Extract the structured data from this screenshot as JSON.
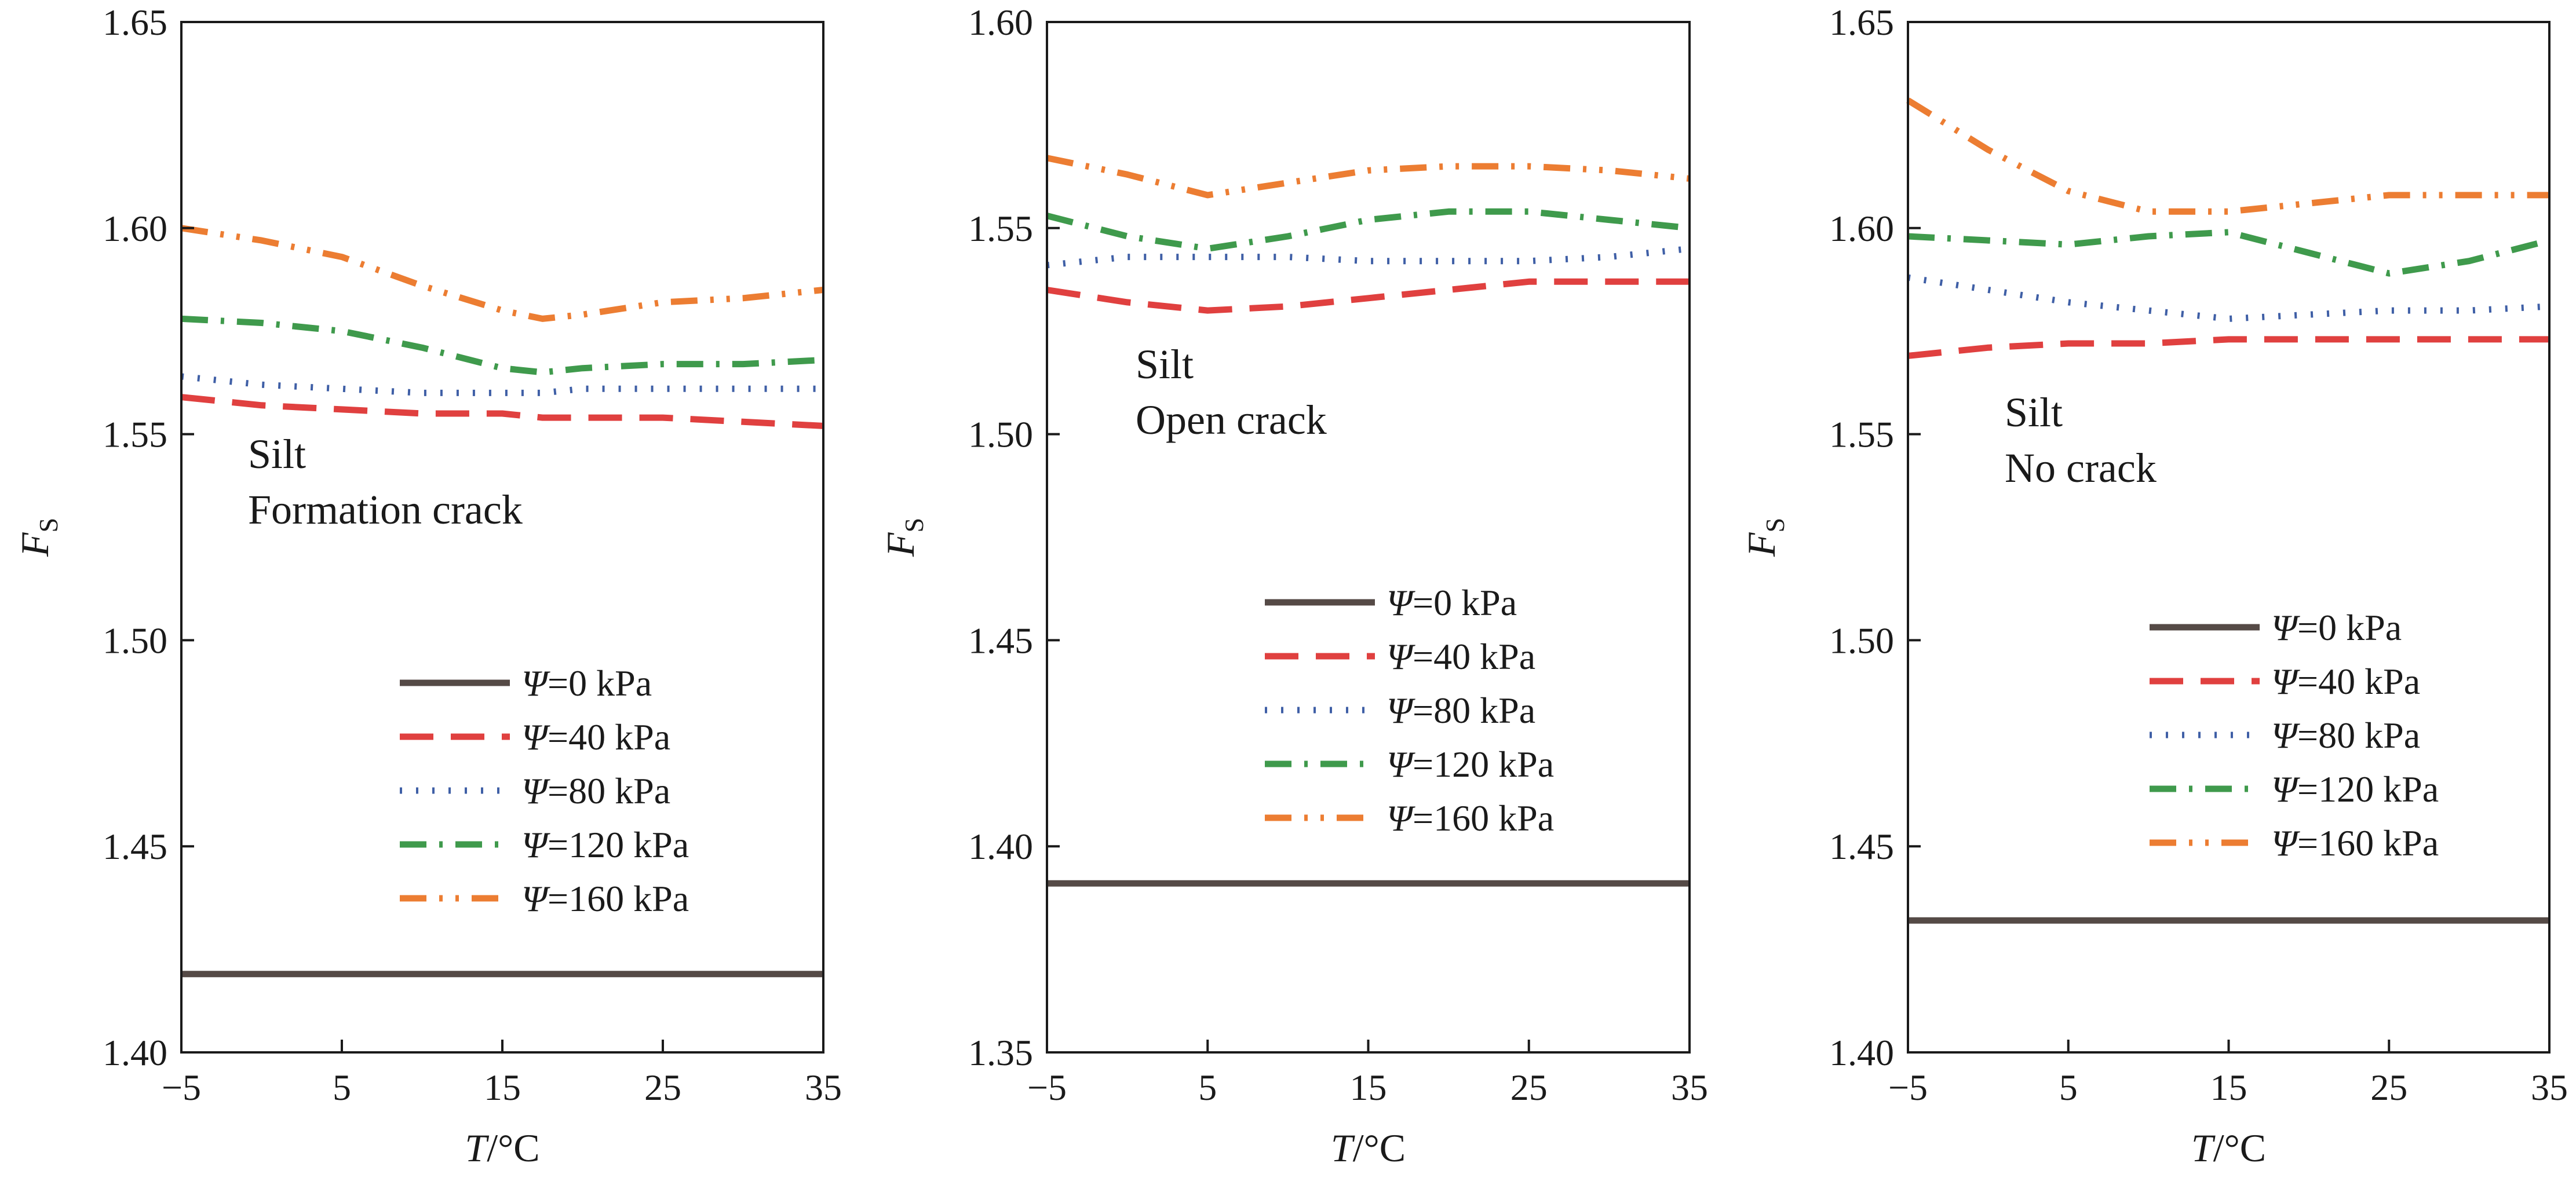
{
  "chart_data": [
    {
      "type": "line",
      "title": "",
      "xlabel": {
        "var": "T",
        "unit": "/°C"
      },
      "ylabel": {
        "var": "F",
        "sub": "S"
      },
      "xlim": [
        -5,
        35
      ],
      "ylim": [
        1.4,
        1.65
      ],
      "xticks": [
        -5,
        5,
        15,
        25,
        35
      ],
      "xtick_labels": [
        "−5",
        "5",
        "15",
        "25",
        "35"
      ],
      "yticks": [
        1.4,
        1.45,
        1.5,
        1.55,
        1.6,
        1.65
      ],
      "ytick_labels": [
        "1.40",
        "1.45",
        "1.50",
        "1.55",
        "1.60",
        "1.65"
      ],
      "annotation": [
        "Silt",
        "Formation crack"
      ],
      "legend_position": "lower-right",
      "x": [
        -5,
        0,
        5,
        10,
        15,
        17.5,
        20,
        25,
        30,
        35
      ],
      "series": [
        {
          "name": "Ψ=0 kPa",
          "legend": {
            "sym": "Ψ",
            "text": "=0 kPa"
          },
          "style": "solid",
          "color": "#554a46",
          "values": [
            1.419,
            1.419,
            1.419,
            1.419,
            1.419,
            1.419,
            1.419,
            1.419,
            1.419,
            1.419
          ]
        },
        {
          "name": "Ψ=40 kPa",
          "legend": {
            "sym": "Ψ",
            "text": "=40 kPa"
          },
          "style": "dashed",
          "color": "#e0403f",
          "values": [
            1.559,
            1.557,
            1.556,
            1.555,
            1.555,
            1.554,
            1.554,
            1.554,
            1.553,
            1.552
          ]
        },
        {
          "name": "Ψ=80 kPa",
          "legend": {
            "sym": "Ψ",
            "text": "=80 kPa"
          },
          "style": "dotted",
          "color": "#3f5fa6",
          "values": [
            1.564,
            1.562,
            1.561,
            1.56,
            1.56,
            1.56,
            1.561,
            1.561,
            1.561,
            1.561
          ]
        },
        {
          "name": "Ψ=120 kPa",
          "legend": {
            "sym": "Ψ",
            "text": "=120 kPa"
          },
          "style": "dashdot",
          "color": "#3f9a4c",
          "values": [
            1.578,
            1.577,
            1.575,
            1.571,
            1.566,
            1.565,
            1.566,
            1.567,
            1.567,
            1.568
          ]
        },
        {
          "name": "Ψ=160 kPa",
          "legend": {
            "sym": "Ψ",
            "text": "=160 kPa"
          },
          "style": "dashdotdot",
          "color": "#ec7d32",
          "values": [
            1.6,
            1.597,
            1.593,
            1.586,
            1.58,
            1.578,
            1.579,
            1.582,
            1.583,
            1.585
          ]
        }
      ]
    },
    {
      "type": "line",
      "title": "",
      "xlabel": {
        "var": "T",
        "unit": "/°C"
      },
      "ylabel": {
        "var": "F",
        "sub": "S"
      },
      "xlim": [
        -5,
        35
      ],
      "ylim": [
        1.35,
        1.6
      ],
      "xticks": [
        -5,
        5,
        15,
        25,
        35
      ],
      "xtick_labels": [
        "−5",
        "5",
        "15",
        "25",
        "35"
      ],
      "yticks": [
        1.35,
        1.4,
        1.45,
        1.5,
        1.55,
        1.6
      ],
      "ytick_labels": [
        "1.35",
        "1.40",
        "1.45",
        "1.50",
        "1.55",
        "1.60"
      ],
      "annotation": [
        "Silt",
        "Open crack"
      ],
      "legend_position": "center-right",
      "x": [
        -5,
        0,
        5,
        10,
        15,
        20,
        25,
        30,
        35
      ],
      "series": [
        {
          "name": "Ψ=0 kPa",
          "legend": {
            "sym": "Ψ",
            "text": "=0 kPa"
          },
          "style": "solid",
          "color": "#554a46",
          "values": [
            1.391,
            1.391,
            1.391,
            1.391,
            1.391,
            1.391,
            1.391,
            1.391,
            1.391
          ]
        },
        {
          "name": "Ψ=40 kPa",
          "legend": {
            "sym": "Ψ",
            "text": "=40 kPa"
          },
          "style": "dashed",
          "color": "#e0403f",
          "values": [
            1.535,
            1.532,
            1.53,
            1.531,
            1.533,
            1.535,
            1.537,
            1.537,
            1.537
          ]
        },
        {
          "name": "Ψ=80 kPa",
          "legend": {
            "sym": "Ψ",
            "text": "=80 kPa"
          },
          "style": "dotted",
          "color": "#3f5fa6",
          "values": [
            1.541,
            1.543,
            1.543,
            1.543,
            1.542,
            1.542,
            1.542,
            1.543,
            1.545
          ]
        },
        {
          "name": "Ψ=120 kPa",
          "legend": {
            "sym": "Ψ",
            "text": "=120 kPa"
          },
          "style": "dashdot",
          "color": "#3f9a4c",
          "values": [
            1.553,
            1.548,
            1.545,
            1.548,
            1.552,
            1.554,
            1.554,
            1.552,
            1.55
          ]
        },
        {
          "name": "Ψ=160 kPa",
          "legend": {
            "sym": "Ψ",
            "text": "=160 kPa"
          },
          "style": "dashdotdot",
          "color": "#ec7d32",
          "values": [
            1.567,
            1.563,
            1.558,
            1.561,
            1.564,
            1.565,
            1.565,
            1.564,
            1.562
          ]
        }
      ]
    },
    {
      "type": "line",
      "title": "",
      "xlabel": {
        "var": "T",
        "unit": "/°C"
      },
      "ylabel": {
        "var": "F",
        "sub": "S"
      },
      "xlim": [
        -5,
        35
      ],
      "ylim": [
        1.4,
        1.65
      ],
      "xticks": [
        -5,
        5,
        15,
        25,
        35
      ],
      "xtick_labels": [
        "−5",
        "5",
        "15",
        "25",
        "35"
      ],
      "yticks": [
        1.4,
        1.45,
        1.5,
        1.55,
        1.6,
        1.65
      ],
      "ytick_labels": [
        "1.40",
        "1.45",
        "1.50",
        "1.55",
        "1.60",
        "1.65"
      ],
      "annotation": [
        "Silt",
        "No crack"
      ],
      "legend_position": "center-right",
      "x": [
        -5,
        0,
        5,
        10,
        15,
        20,
        25,
        30,
        35
      ],
      "series": [
        {
          "name": "Ψ=0 kPa",
          "legend": {
            "sym": "Ψ",
            "text": "=0 kPa"
          },
          "style": "solid",
          "color": "#554a46",
          "values": [
            1.432,
            1.432,
            1.432,
            1.432,
            1.432,
            1.432,
            1.432,
            1.432,
            1.432
          ]
        },
        {
          "name": "Ψ=40 kPa",
          "legend": {
            "sym": "Ψ",
            "text": "=40 kPa"
          },
          "style": "dashed",
          "color": "#e0403f",
          "values": [
            1.569,
            1.571,
            1.572,
            1.572,
            1.573,
            1.573,
            1.573,
            1.573,
            1.573
          ]
        },
        {
          "name": "Ψ=80 kPa",
          "legend": {
            "sym": "Ψ",
            "text": "=80 kPa"
          },
          "style": "dotted",
          "color": "#3f5fa6",
          "values": [
            1.588,
            1.585,
            1.582,
            1.58,
            1.578,
            1.579,
            1.58,
            1.58,
            1.581
          ]
        },
        {
          "name": "Ψ=120 kPa",
          "legend": {
            "sym": "Ψ",
            "text": "=120 kPa"
          },
          "style": "dashdot",
          "color": "#3f9a4c",
          "values": [
            1.598,
            1.597,
            1.596,
            1.598,
            1.599,
            1.594,
            1.589,
            1.592,
            1.597
          ]
        },
        {
          "name": "Ψ=160 kPa",
          "legend": {
            "sym": "Ψ",
            "text": "=160 kPa"
          },
          "style": "dashdotdot",
          "color": "#ec7d32",
          "values": [
            1.631,
            1.619,
            1.609,
            1.604,
            1.604,
            1.606,
            1.608,
            1.608,
            1.608
          ]
        }
      ]
    }
  ]
}
